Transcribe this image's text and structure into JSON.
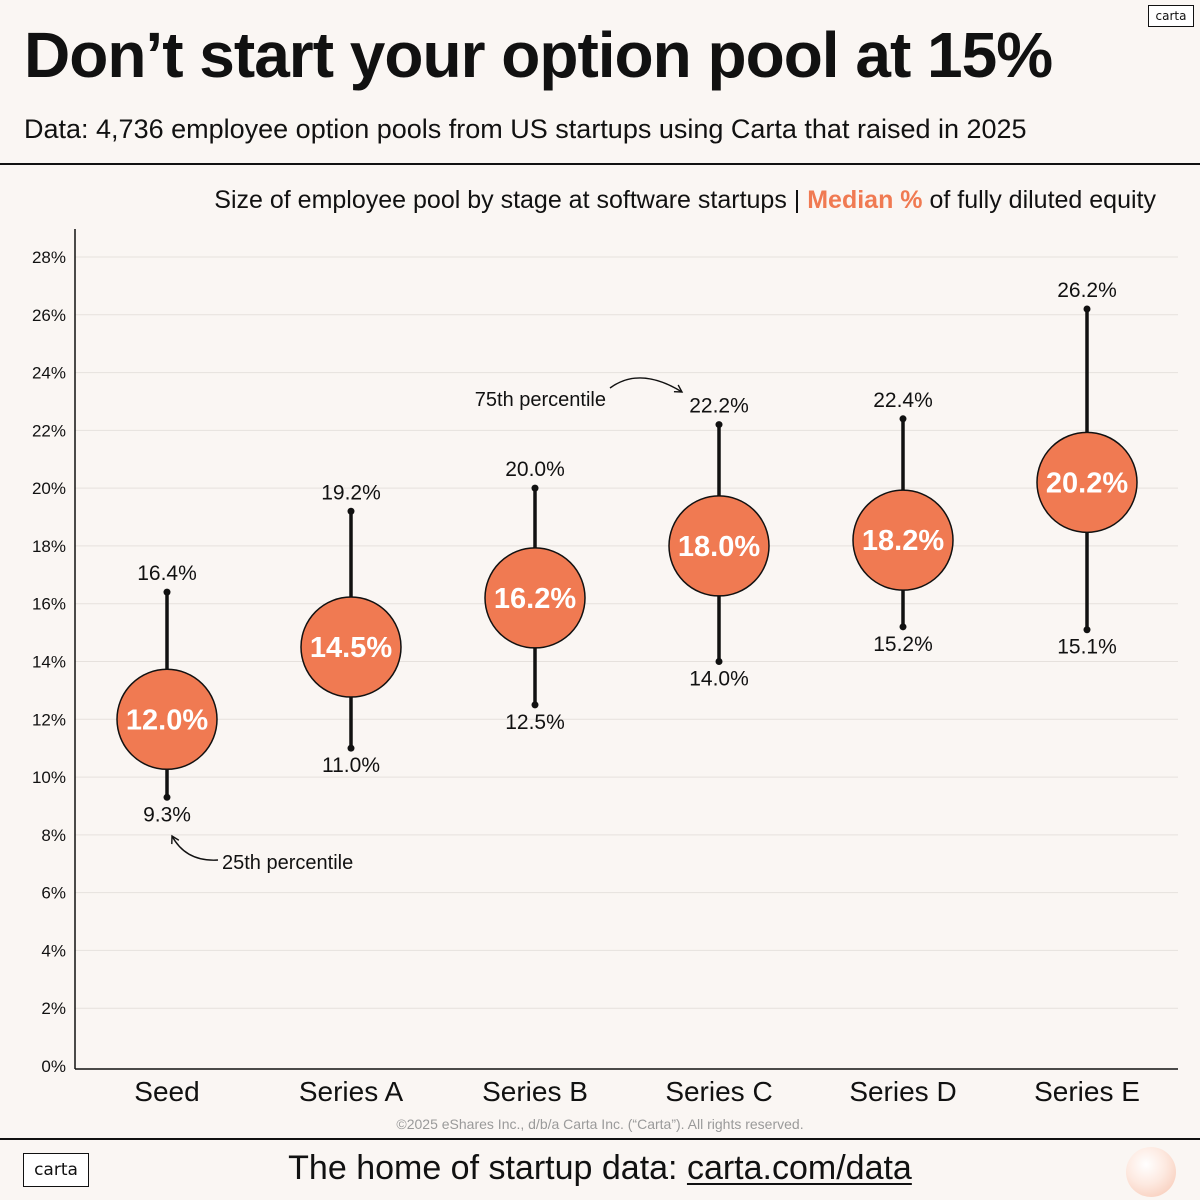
{
  "brand": {
    "logo": "carta",
    "accent_color": "#f07a52"
  },
  "header": {
    "title": "Don’t start your option pool at 15%",
    "subtitle": "Data: 4,736 employee option pools from US startups using Carta that raised in 2025"
  },
  "chart_header": {
    "prefix": "Size of employee pool by stage at software startups | ",
    "highlight": "Median %",
    "suffix": " of fully diluted equity"
  },
  "chart_data": {
    "type": "range-dot",
    "title": "Size of employee pool by stage at software startups | Median % of fully diluted equity",
    "xlabel": "",
    "ylabel": "",
    "ylim": [
      0,
      28
    ],
    "yticks": [
      0,
      2,
      4,
      6,
      8,
      10,
      12,
      14,
      16,
      18,
      20,
      22,
      24,
      26,
      28
    ],
    "grid": true,
    "categories": [
      "Seed",
      "Series A",
      "Series B",
      "Series C",
      "Series D",
      "Series E"
    ],
    "series": [
      {
        "name": "25th percentile",
        "values": [
          9.3,
          11.0,
          12.5,
          14.0,
          15.2,
          15.1
        ]
      },
      {
        "name": "Median",
        "values": [
          12.0,
          14.5,
          16.2,
          18.0,
          18.2,
          20.2
        ]
      },
      {
        "name": "75th percentile",
        "values": [
          16.4,
          19.2,
          20.0,
          22.2,
          22.4,
          26.2
        ]
      }
    ],
    "annotations": [
      {
        "text": "75th percentile",
        "category": "Series C",
        "series": "75th percentile"
      },
      {
        "text": "25th percentile",
        "category": "Seed",
        "series": "25th percentile"
      }
    ]
  },
  "copyright": "©2025 eShares Inc., d/b/a Carta Inc. (“Carta”). All rights reserved.",
  "footer": {
    "prefix": "The home of startup data: ",
    "link": "carta.com/data"
  }
}
